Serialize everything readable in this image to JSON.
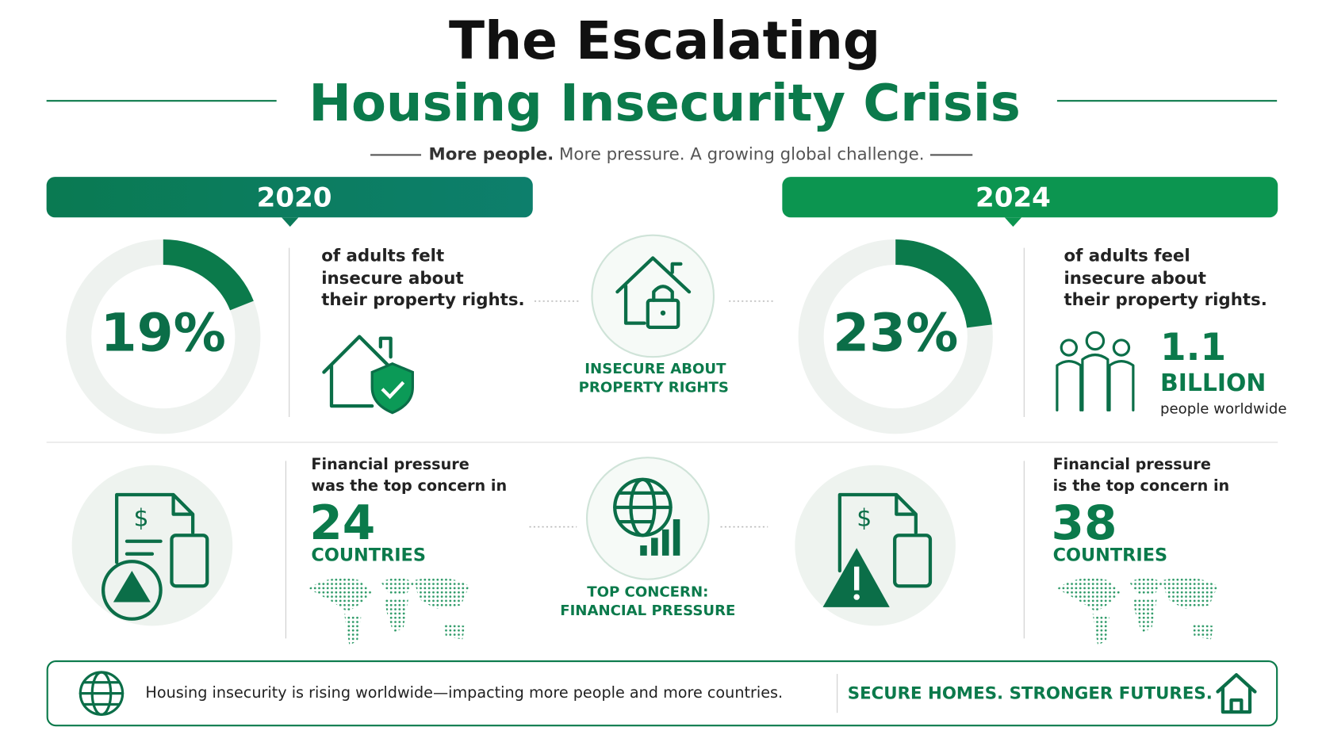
{
  "header": {
    "title_line1": "The Escalating",
    "title_line2": "Housing Insecurity Crisis",
    "subtitle": [
      "More people.",
      "More pressure. A growing global challenge."
    ]
  },
  "years": [
    "2020",
    "2024"
  ],
  "property": [
    {
      "donut": {
        "value": 19,
        "label": "19%"
      },
      "text": [
        "of adults felt",
        "insecure about",
        "their property rights."
      ]
    },
    {
      "donut": {
        "value": 23,
        "label": "23%"
      },
      "text": [
        "of adults feel",
        "insecure about",
        "their property rights."
      ]
    }
  ],
  "center_property": [
    "INSECURE ABOUT",
    "PROPERTY RIGHTS"
  ],
  "people_stat": {
    "number": "1.1",
    "unit": "BILLION",
    "caption": "people worldwide"
  },
  "financial": [
    {
      "text": [
        "Financial pressure",
        "was the top concern in"
      ],
      "number": "24",
      "unit": "COUNTRIES"
    },
    {
      "text": [
        "Financial pressure",
        "is the top concern in"
      ],
      "number": "38",
      "unit": "COUNTRIES"
    }
  ],
  "center_financial": [
    "TOP CONCERN:",
    "FINANCIAL PRESSURE"
  ],
  "footer": {
    "message": "Housing insecurity is rising worldwide—impacting more people and more countries.",
    "slogan": "SECURE HOMES. STRONGER FUTURES."
  }
}
